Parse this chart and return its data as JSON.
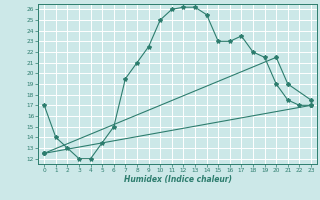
{
  "title": "",
  "xlabel": "Humidex (Indice chaleur)",
  "bg_color": "#cce8e8",
  "grid_color": "#ffffff",
  "line_color": "#2d7d6e",
  "xlim": [
    -0.5,
    23.5
  ],
  "ylim": [
    11.5,
    26.5
  ],
  "xticks": [
    0,
    1,
    2,
    3,
    4,
    5,
    6,
    7,
    8,
    9,
    10,
    11,
    12,
    13,
    14,
    15,
    16,
    17,
    18,
    19,
    20,
    21,
    22,
    23
  ],
  "yticks": [
    12,
    13,
    14,
    15,
    16,
    17,
    18,
    19,
    20,
    21,
    22,
    23,
    24,
    25,
    26
  ],
  "line1_x": [
    0,
    1,
    2,
    3,
    4,
    5,
    6,
    7,
    8,
    9,
    10,
    11,
    12,
    13,
    14,
    15,
    16,
    17,
    18,
    19,
    20,
    21,
    22,
    23
  ],
  "line1_y": [
    17.0,
    14.0,
    13.0,
    12.0,
    12.0,
    13.5,
    15.0,
    19.5,
    21.0,
    22.5,
    25.0,
    26.0,
    26.2,
    26.2,
    25.5,
    23.0,
    23.0,
    23.5,
    22.0,
    21.5,
    19.0,
    17.5,
    17.0,
    17.0
  ],
  "line2_x": [
    0,
    23
  ],
  "line2_y": [
    12.5,
    17.0
  ],
  "line3_x": [
    0,
    20,
    21,
    23
  ],
  "line3_y": [
    12.5,
    21.5,
    19.0,
    17.5
  ]
}
